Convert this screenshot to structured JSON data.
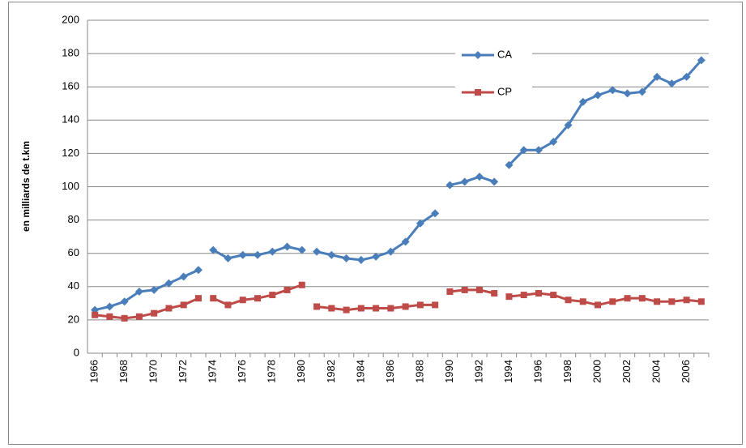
{
  "chart_data": {
    "type": "line",
    "y_label": "en milliards de t.km",
    "categories": [
      "1966",
      null,
      "1968",
      null,
      "1970",
      null,
      "1972",
      null,
      null,
      "1974",
      null,
      "1976",
      null,
      "1978",
      null,
      "1980",
      null,
      null,
      "1982",
      null,
      "1984",
      null,
      "1986",
      null,
      "1988",
      null,
      null,
      "1990",
      null,
      "1992",
      null,
      null,
      "1994",
      null,
      "1996",
      null,
      "1998",
      null,
      "2000",
      null,
      "2002",
      null,
      "2004",
      null,
      "2006",
      null
    ],
    "series": [
      {
        "name": "CA",
        "color": "#4a7ebb",
        "marker": "diamond",
        "values": [
          26,
          28,
          31,
          37,
          38,
          42,
          46,
          50,
          null,
          62,
          57,
          59,
          59,
          61,
          64,
          62,
          null,
          61,
          59,
          57,
          56,
          58,
          61,
          67,
          78,
          84,
          null,
          101,
          103,
          106,
          103,
          null,
          113,
          122,
          122,
          127,
          137,
          151,
          155,
          158,
          156,
          157,
          166,
          162,
          166,
          176
        ]
      },
      {
        "name": "CP",
        "color": "#be4b48",
        "marker": "square",
        "values": [
          23,
          22,
          21,
          22,
          24,
          27,
          29,
          33,
          null,
          33,
          29,
          32,
          33,
          35,
          38,
          41,
          null,
          28,
          27,
          26,
          27,
          27,
          27,
          28,
          29,
          29,
          null,
          37,
          38,
          38,
          36,
          null,
          34,
          35,
          36,
          35,
          32,
          31,
          29,
          31,
          33,
          33,
          31,
          31,
          32,
          31
        ]
      }
    ],
    "ylim": [
      0,
      200
    ],
    "yticks": [
      0,
      20,
      40,
      60,
      80,
      100,
      120,
      140,
      160,
      180,
      200
    ],
    "grid": true
  }
}
